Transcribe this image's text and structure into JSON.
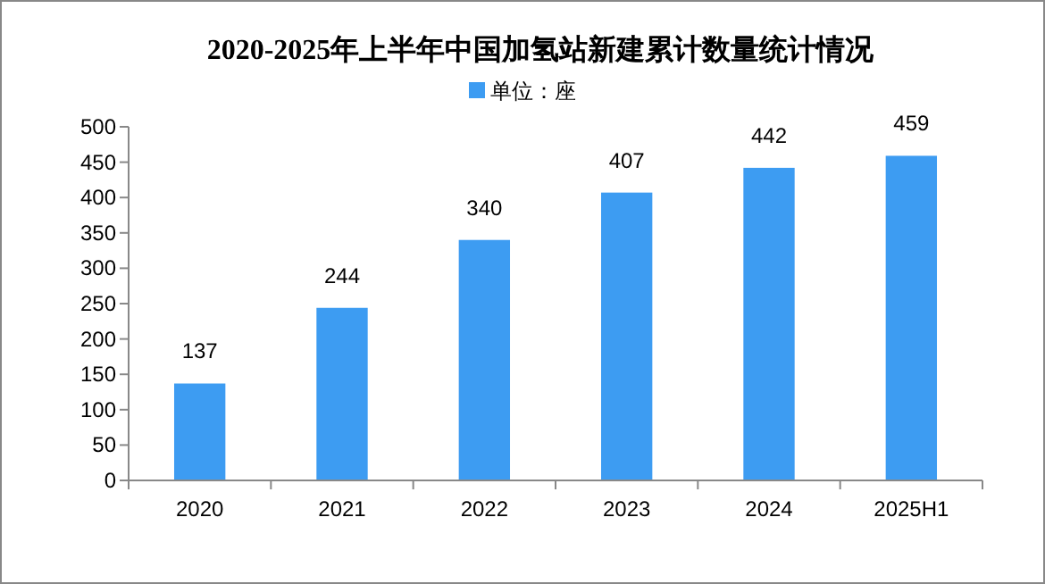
{
  "chart_data": {
    "type": "bar",
    "title": "2020-2025年上半年中国加氢站新建累计数量统计情况",
    "categories": [
      "2020",
      "2021",
      "2022",
      "2023",
      "2024",
      "2025H1"
    ],
    "series": [
      {
        "name": "单位：座",
        "color": "#3d9cf2",
        "values": [
          137,
          244,
          340,
          407,
          442,
          459
        ]
      }
    ],
    "ylim": [
      0,
      500
    ],
    "yticks": [
      0,
      50,
      100,
      150,
      200,
      250,
      300,
      350,
      400,
      450,
      500
    ],
    "data_labels": true,
    "legend": "top",
    "grid": false
  }
}
